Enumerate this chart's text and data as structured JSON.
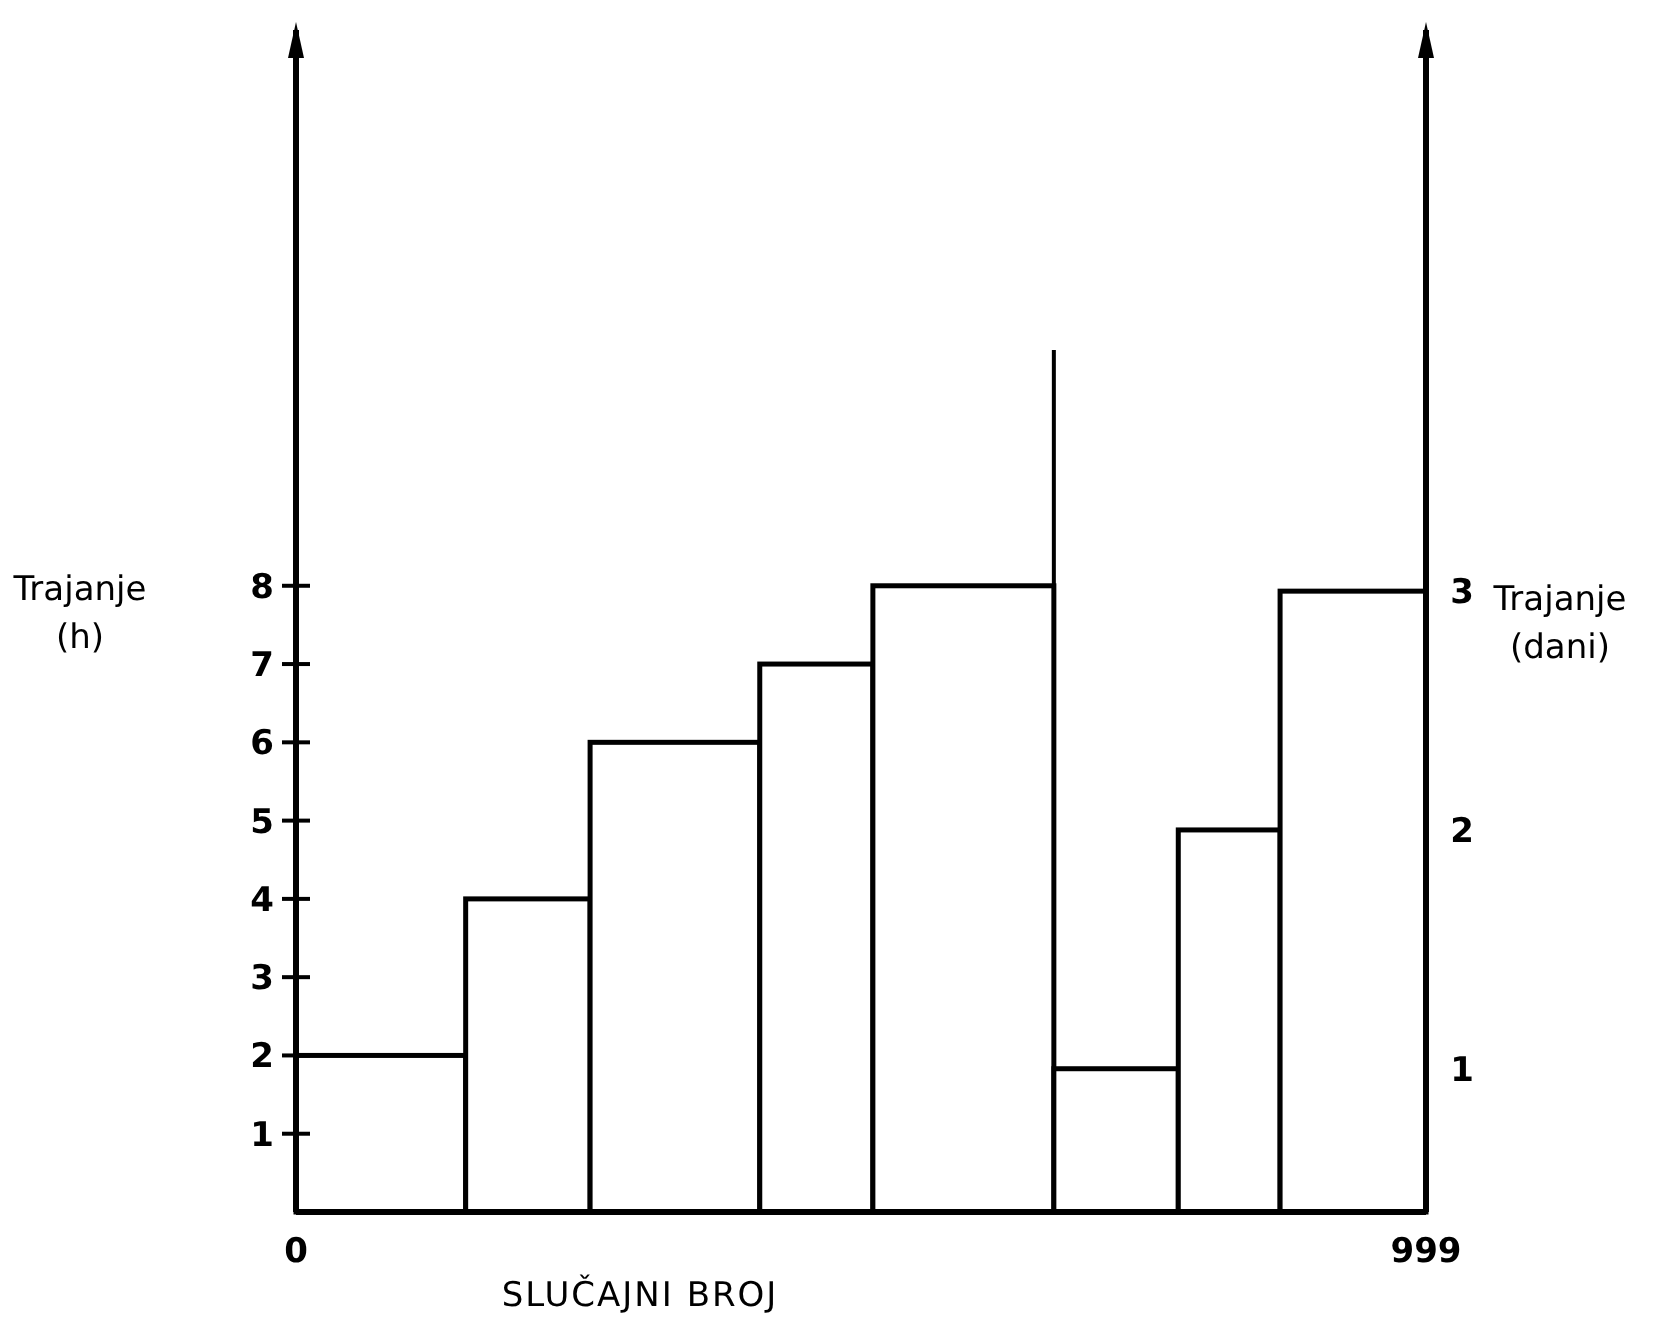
{
  "chart_data": {
    "type": "histogram",
    "xlabel": "SLUČAJNI BROJ",
    "ylabel": "Trajanje\n(h)",
    "y2label": "Trajanje\n(dani)",
    "xlim": [
      0,
      999
    ],
    "xticks": [
      0,
      999
    ],
    "ylim": [
      0,
      15.1
    ],
    "yticks": [
      1,
      2,
      3,
      4,
      5,
      6,
      7,
      8
    ],
    "y2lim": [
      0.4,
      5.35
    ],
    "y2ticks": [
      1,
      2,
      3
    ],
    "bins": [
      0,
      150,
      260,
      410,
      510,
      670,
      780,
      870,
      999
    ],
    "series": [
      {
        "color": "#ffffff",
        "values": [
          2,
          4,
          6,
          7,
          8,
          null,
          null,
          null
        ]
      },
      {
        "color": "#ffffff",
        "axis": "y2",
        "values": [
          null,
          null,
          null,
          null,
          null,
          1,
          2,
          3
        ]
      }
    ],
    "ref_lines": [
      {
        "axis": "x",
        "value": 670,
        "color": "#000000"
      }
    ],
    "grid": false,
    "legend": false
  }
}
